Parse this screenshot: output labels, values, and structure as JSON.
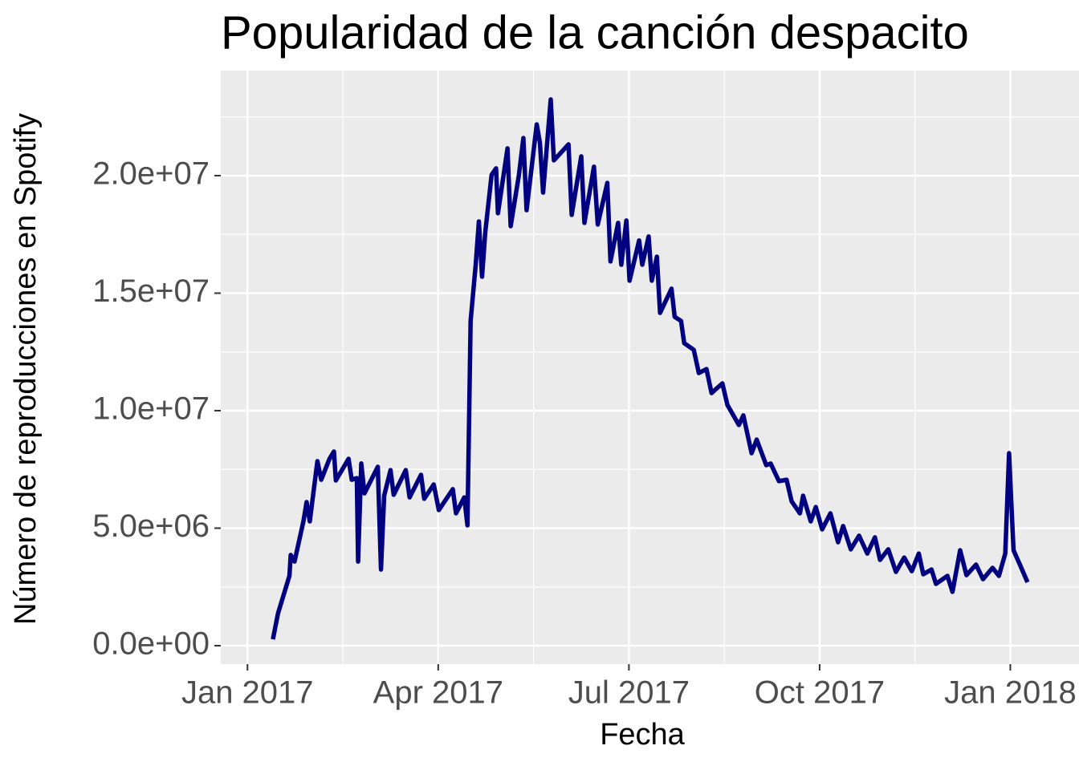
{
  "chart_data": {
    "type": "line",
    "title": "Popularidad de la canción despacito",
    "x_label": "Fecha",
    "y_label": "Número de reproducciones en Spotify",
    "x": [
      0.4,
      0.48,
      0.66,
      0.68,
      0.74,
      0.88,
      0.93,
      0.98,
      1.1,
      1.16,
      1.29,
      1.36,
      1.39,
      1.59,
      1.64,
      1.72,
      1.74,
      1.79,
      1.84,
      2.05,
      2.1,
      2.15,
      2.25,
      2.3,
      2.49,
      2.55,
      2.73,
      2.78,
      2.93,
      3.01,
      3.23,
      3.28,
      3.41,
      3.46,
      3.51,
      3.59,
      3.64,
      3.69,
      3.74,
      3.84,
      3.91,
      3.94,
      4.09,
      4.14,
      4.27,
      4.34,
      4.39,
      4.55,
      4.6,
      4.65,
      4.77,
      4.82,
      5.05,
      5.1,
      5.25,
      5.3,
      5.45,
      5.51,
      5.66,
      5.71,
      5.83,
      5.88,
      5.96,
      6.01,
      6.16,
      6.21,
      6.31,
      6.36,
      6.44,
      6.49,
      6.67,
      6.72,
      6.82,
      6.87,
      7.02,
      7.1,
      7.22,
      7.3,
      7.47,
      7.55,
      7.73,
      7.8,
      7.93,
      8.01,
      8.16,
      8.23,
      8.36,
      8.48,
      8.56,
      8.69,
      8.74,
      8.86,
      8.94,
      9.04,
      9.17,
      9.29,
      9.37,
      9.49,
      9.62,
      9.75,
      9.87,
      9.95,
      10.08,
      10.2,
      10.33,
      10.45,
      10.56,
      10.63,
      10.76,
      10.83,
      11.01,
      11.09,
      11.21,
      11.31,
      11.46,
      11.57,
      11.72,
      11.82,
      11.92,
      11.98,
      12.05,
      12.15,
      12.27
    ],
    "series": [
      {
        "color": "#000080",
        "values": [
          270000,
          1370000,
          2970000,
          3860000,
          3580000,
          5290000,
          6110000,
          5290000,
          7850000,
          7060000,
          7950000,
          8260000,
          7030000,
          7950000,
          7060000,
          7130000,
          3580000,
          7750000,
          6480000,
          7610000,
          3240000,
          6380000,
          7470000,
          6420000,
          7470000,
          6310000,
          7270000,
          6250000,
          6860000,
          5770000,
          6660000,
          5630000,
          6310000,
          5120000,
          13820000,
          16210000,
          18050000,
          15700000,
          17580000,
          20030000,
          20310000,
          18400000,
          21160000,
          17850000,
          20030000,
          21600000,
          18530000,
          22180000,
          21400000,
          19280000,
          23240000,
          20650000,
          21330000,
          18330000,
          20820000,
          17990000,
          20380000,
          17920000,
          19690000,
          16350000,
          17990000,
          16210000,
          18090000,
          15530000,
          17240000,
          16210000,
          17410000,
          15530000,
          16550000,
          14160000,
          15190000,
          13990000,
          13820000,
          12870000,
          12590000,
          11600000,
          11770000,
          10750000,
          11160000,
          10240000,
          9390000,
          9800000,
          8190000,
          8770000,
          7680000,
          7750000,
          7000000,
          7060000,
          6140000,
          5630000,
          6380000,
          5290000,
          5900000,
          4950000,
          5630000,
          4400000,
          5090000,
          4100000,
          4680000,
          3920000,
          4610000,
          3650000,
          4100000,
          3140000,
          3750000,
          3170000,
          3920000,
          3040000,
          3240000,
          2630000,
          2970000,
          2290000,
          4060000,
          3000000,
          3450000,
          2830000,
          3310000,
          2970000,
          3920000,
          8190000,
          4060000,
          3450000,
          2700000
        ]
      }
    ],
    "xlim": [
      -0.42,
      13.08
    ],
    "xticks": [
      {
        "value": 0,
        "label": "Jan 2017"
      },
      {
        "value": 3,
        "label": "Apr 2017"
      },
      {
        "value": 6,
        "label": "Jul 2017"
      },
      {
        "value": 9,
        "label": "Oct 2017"
      },
      {
        "value": 12,
        "label": "Jan 2018"
      }
    ],
    "ylim": [
      -785000,
      24470000
    ],
    "yticks": [
      {
        "value": 0,
        "label": "0.0e+00"
      },
      {
        "value": 5000000,
        "label": "5.0e+06"
      },
      {
        "value": 10000000,
        "label": "1.0e+07"
      },
      {
        "value": 15000000,
        "label": "1.5e+07"
      },
      {
        "value": 20000000,
        "label": "2.0e+07"
      }
    ],
    "grid": true
  }
}
